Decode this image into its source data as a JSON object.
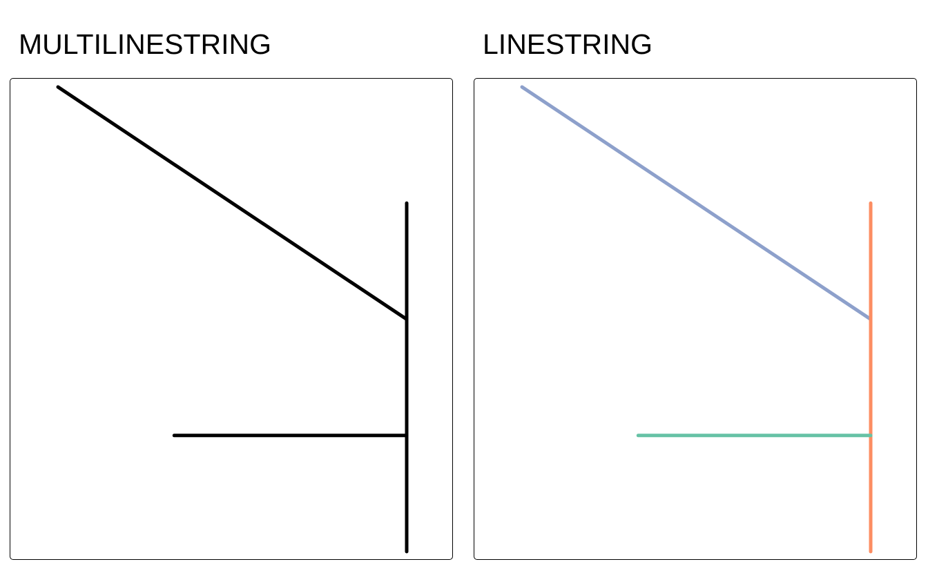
{
  "panels": [
    {
      "title": "MULTILINESTRING",
      "geometry_type": "multilinestring",
      "stroke_colors": [
        "#000000",
        "#000000",
        "#000000"
      ]
    },
    {
      "title": "LINESTRING",
      "geometry_type": "linestring",
      "stroke_colors": [
        "#8da0cb",
        "#fc8d62",
        "#66c2a5"
      ]
    }
  ],
  "geometry": {
    "lines": [
      {
        "id": "diagonal",
        "coords": [
          [
            0,
            8
          ],
          [
            6,
            4
          ]
        ]
      },
      {
        "id": "vertical",
        "coords": [
          [
            6,
            0
          ],
          [
            6,
            6
          ]
        ]
      },
      {
        "id": "horizontal",
        "coords": [
          [
            2,
            2
          ],
          [
            6,
            2
          ]
        ]
      }
    ],
    "xlim": [
      0,
      6
    ],
    "ylim": [
      0,
      8
    ]
  }
}
